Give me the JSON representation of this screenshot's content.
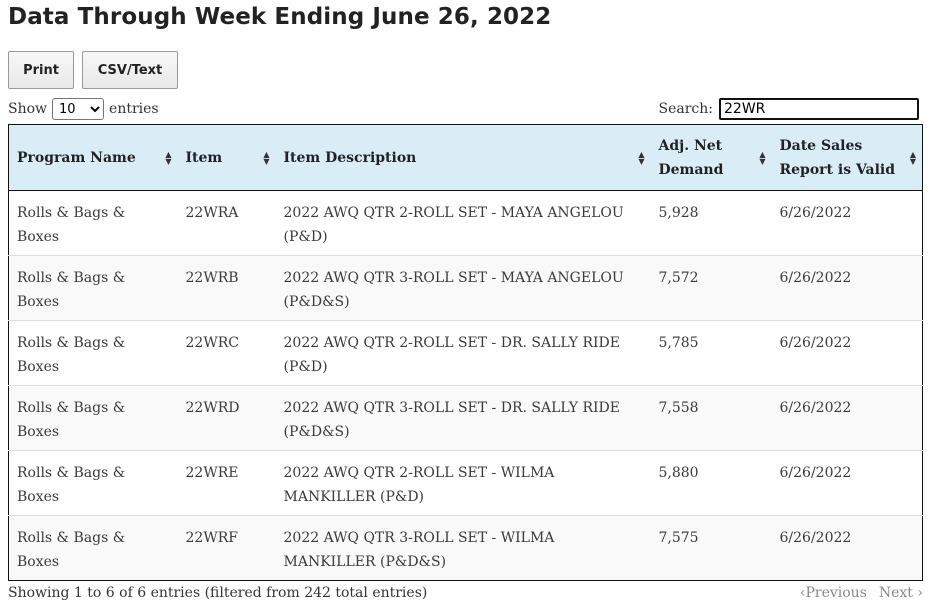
{
  "page": {
    "title": "Data Through Week Ending June 26, 2022"
  },
  "toolbar": {
    "print_label": "Print",
    "csv_label": "CSV/Text"
  },
  "length": {
    "prefix": "Show",
    "selected": "10",
    "suffix": "entries"
  },
  "search": {
    "label": "Search:",
    "value": "22WR"
  },
  "table": {
    "headers": {
      "program": "Program Name",
      "item": "Item",
      "description": "Item Description",
      "demand_line1": "Adj. Net",
      "demand_line2": "Demand",
      "valid_line1": "Date Sales",
      "valid_line2": "Report is Valid"
    },
    "rows": [
      {
        "program": "Rolls & Bags & Boxes",
        "item": "22WRA",
        "desc_line1": "2022 AWQ QTR 2-ROLL SET - MAYA ANGELOU",
        "desc_line2": "(P&D)",
        "demand": "5,928",
        "valid": "6/26/2022"
      },
      {
        "program": "Rolls & Bags & Boxes",
        "item": "22WRB",
        "desc_line1": "2022 AWQ QTR 3-ROLL SET - MAYA ANGELOU",
        "desc_line2": "(P&D&S)",
        "demand": "7,572",
        "valid": "6/26/2022"
      },
      {
        "program": "Rolls & Bags & Boxes",
        "item": "22WRC",
        "desc_line1": "2022 AWQ QTR 2-ROLL SET - DR. SALLY RIDE",
        "desc_line2": "(P&D)",
        "demand": "5,785",
        "valid": "6/26/2022"
      },
      {
        "program": "Rolls & Bags & Boxes",
        "item": "22WRD",
        "desc_line1": "2022 AWQ QTR 3-ROLL SET - DR. SALLY RIDE",
        "desc_line2": "(P&D&S)",
        "demand": "7,558",
        "valid": "6/26/2022"
      },
      {
        "program": "Rolls & Bags & Boxes",
        "item": "22WRE",
        "desc_line1": "2022 AWQ QTR 2-ROLL SET - WILMA",
        "desc_line2": "MANKILLER (P&D)",
        "demand": "5,880",
        "valid": "6/26/2022"
      },
      {
        "program": "Rolls & Bags & Boxes",
        "item": "22WRF",
        "desc_line1": "2022 AWQ QTR 3-ROLL SET - WILMA",
        "desc_line2": "MANKILLER (P&D&S)",
        "demand": "7,575",
        "valid": "6/26/2022"
      }
    ]
  },
  "footer": {
    "info": "Showing 1 to 6 of 6 entries (filtered from 242 total entries)",
    "previous": "Previous",
    "next": "Next"
  }
}
